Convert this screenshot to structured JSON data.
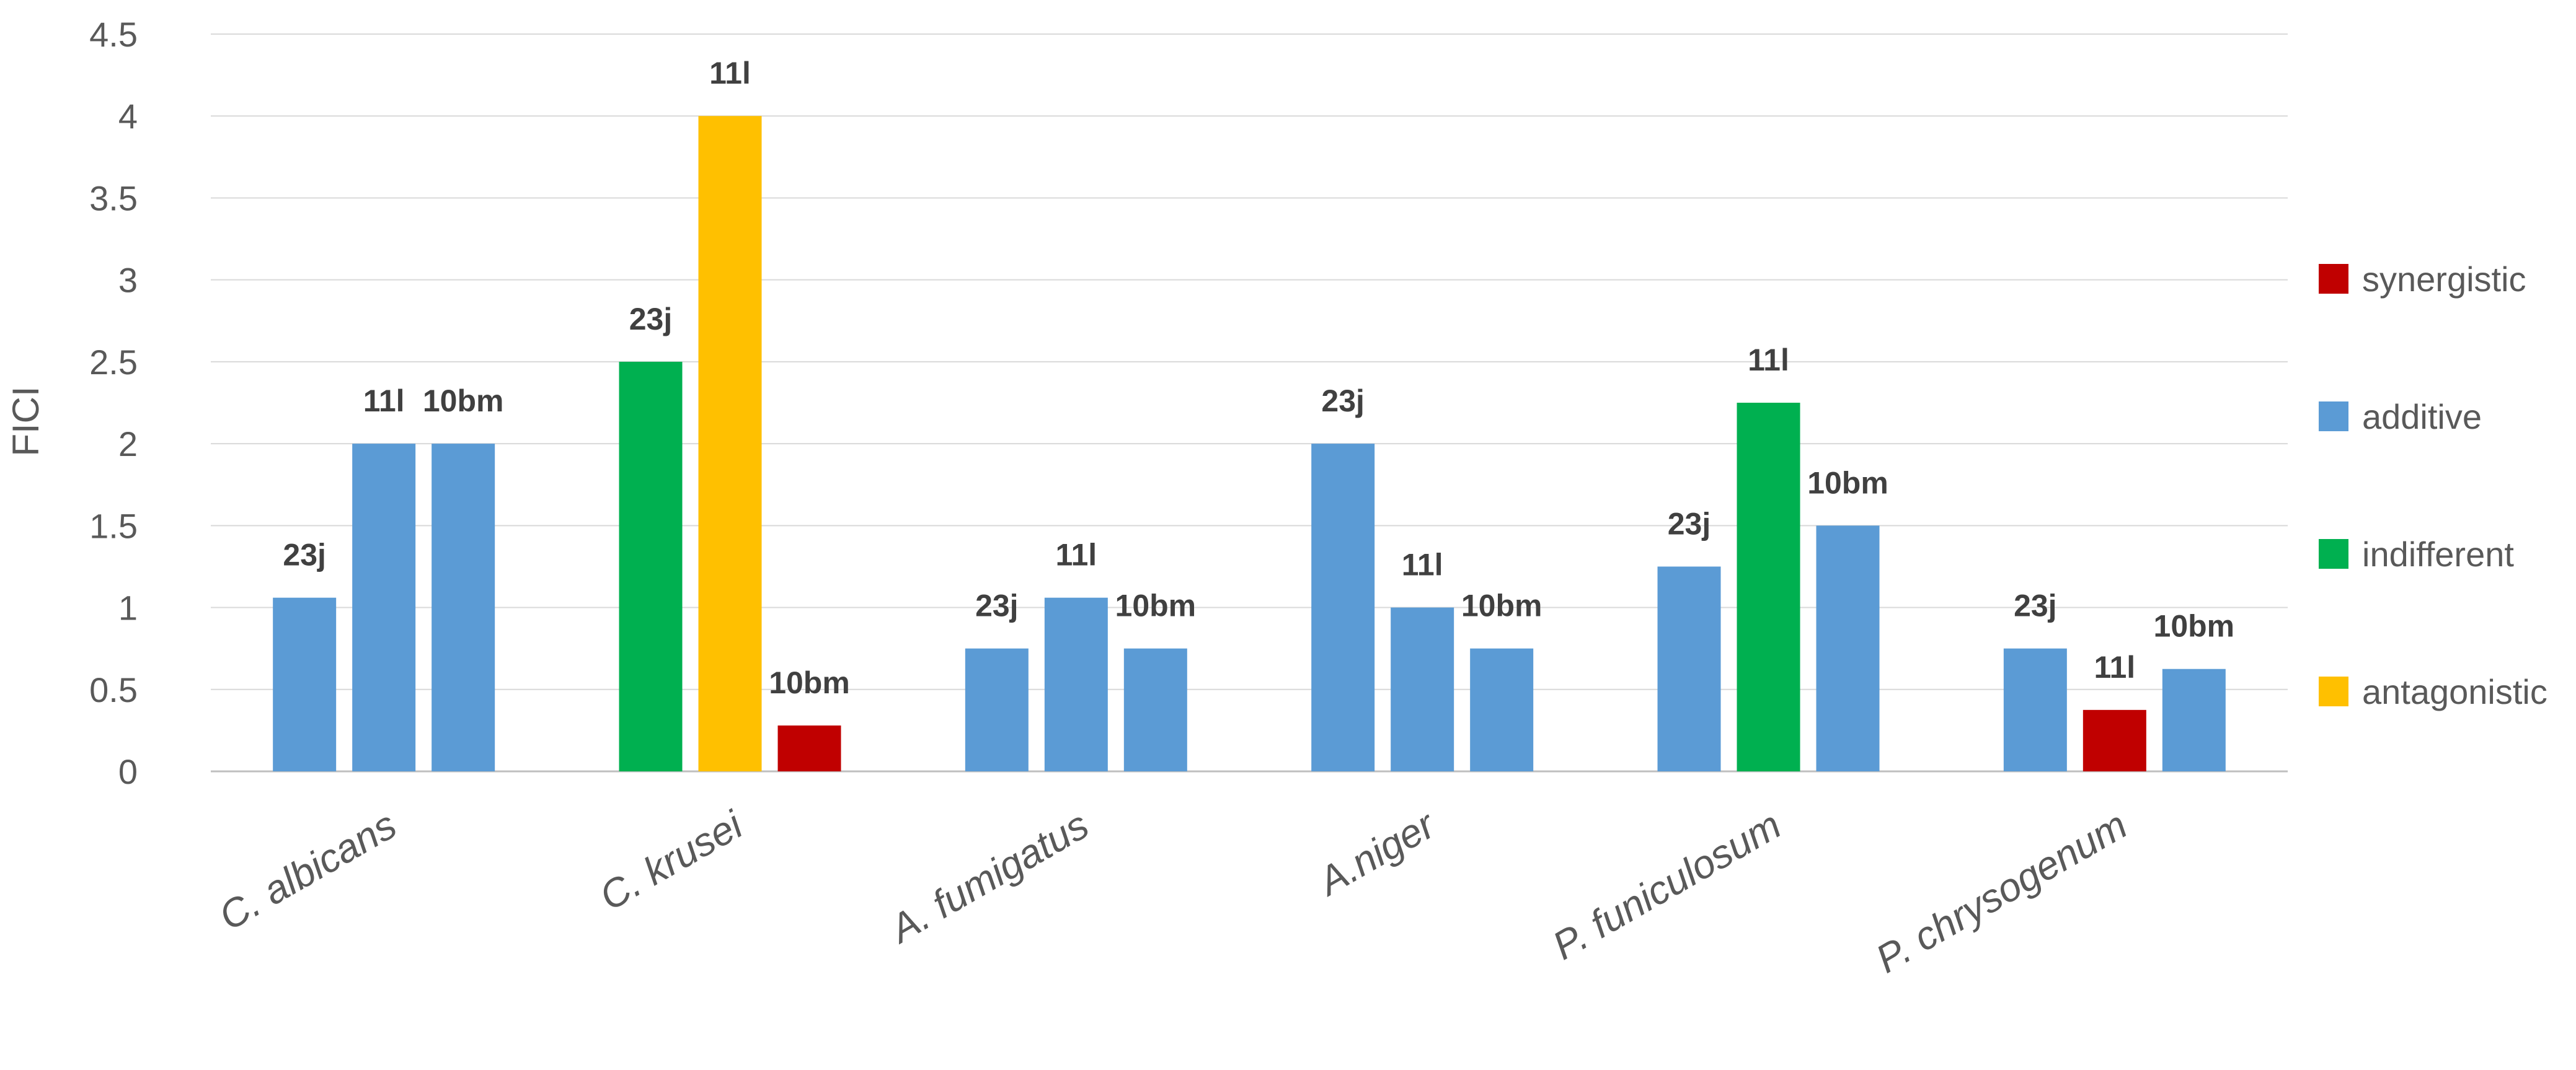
{
  "chart_data": {
    "type": "bar",
    "ylabel": "FICI",
    "ylim": [
      0,
      4.5
    ],
    "yticks": [
      0,
      0.5,
      1,
      1.5,
      2,
      2.5,
      3,
      3.5,
      4,
      4.5
    ],
    "ytick_labels": [
      "0",
      "0.5",
      "1",
      "1.5",
      "2",
      "2.5",
      "3",
      "3.5",
      "4",
      "4.5"
    ],
    "grid": true,
    "legend_position": "right",
    "legend": [
      {
        "key": "synergistic",
        "label": "synergistic",
        "color": "#C00000"
      },
      {
        "key": "additive",
        "label": "additive",
        "color": "#5B9BD5"
      },
      {
        "key": "indifferent",
        "label": "indifferent",
        "color": "#00B050"
      },
      {
        "key": "antagonistic",
        "label": "antagonistic",
        "color": "#FFC000"
      }
    ],
    "categories": [
      "C. albicans",
      "C. krusei",
      "A. fumigatus",
      "A.niger",
      "P. funiculosum",
      "P. chrysogenum"
    ],
    "groups": [
      {
        "category": "C. albicans",
        "bars": [
          {
            "label": "23j",
            "value": 1.06,
            "class": "additive"
          },
          {
            "label": "11l",
            "value": 2.0,
            "class": "additive"
          },
          {
            "label": "10bm",
            "value": 2.0,
            "class": "additive"
          }
        ]
      },
      {
        "category": "C. krusei",
        "bars": [
          {
            "label": "23j",
            "value": 2.5,
            "class": "indifferent"
          },
          {
            "label": "11l",
            "value": 4.0,
            "class": "antagonistic"
          },
          {
            "label": "10bm",
            "value": 0.28,
            "class": "synergistic"
          }
        ]
      },
      {
        "category": "A. fumigatus",
        "bars": [
          {
            "label": "23j",
            "value": 0.75,
            "class": "additive"
          },
          {
            "label": "11l",
            "value": 1.06,
            "class": "additive"
          },
          {
            "label": "10bm",
            "value": 0.75,
            "class": "additive"
          }
        ]
      },
      {
        "category": "A.niger",
        "bars": [
          {
            "label": "23j",
            "value": 2.0,
            "class": "additive"
          },
          {
            "label": "11l",
            "value": 1.0,
            "class": "additive"
          },
          {
            "label": "10bm",
            "value": 0.75,
            "class": "additive"
          }
        ]
      },
      {
        "category": "P. funiculosum",
        "bars": [
          {
            "label": "23j",
            "value": 1.25,
            "class": "additive"
          },
          {
            "label": "11l",
            "value": 2.25,
            "class": "indifferent"
          },
          {
            "label": "10bm",
            "value": 1.5,
            "class": "additive"
          }
        ]
      },
      {
        "category": "P. chrysogenum",
        "bars": [
          {
            "label": "23j",
            "value": 0.75,
            "class": "additive"
          },
          {
            "label": "11l",
            "value": 0.375,
            "class": "synergistic"
          },
          {
            "label": "10bm",
            "value": 0.625,
            "class": "additive"
          }
        ]
      }
    ]
  }
}
